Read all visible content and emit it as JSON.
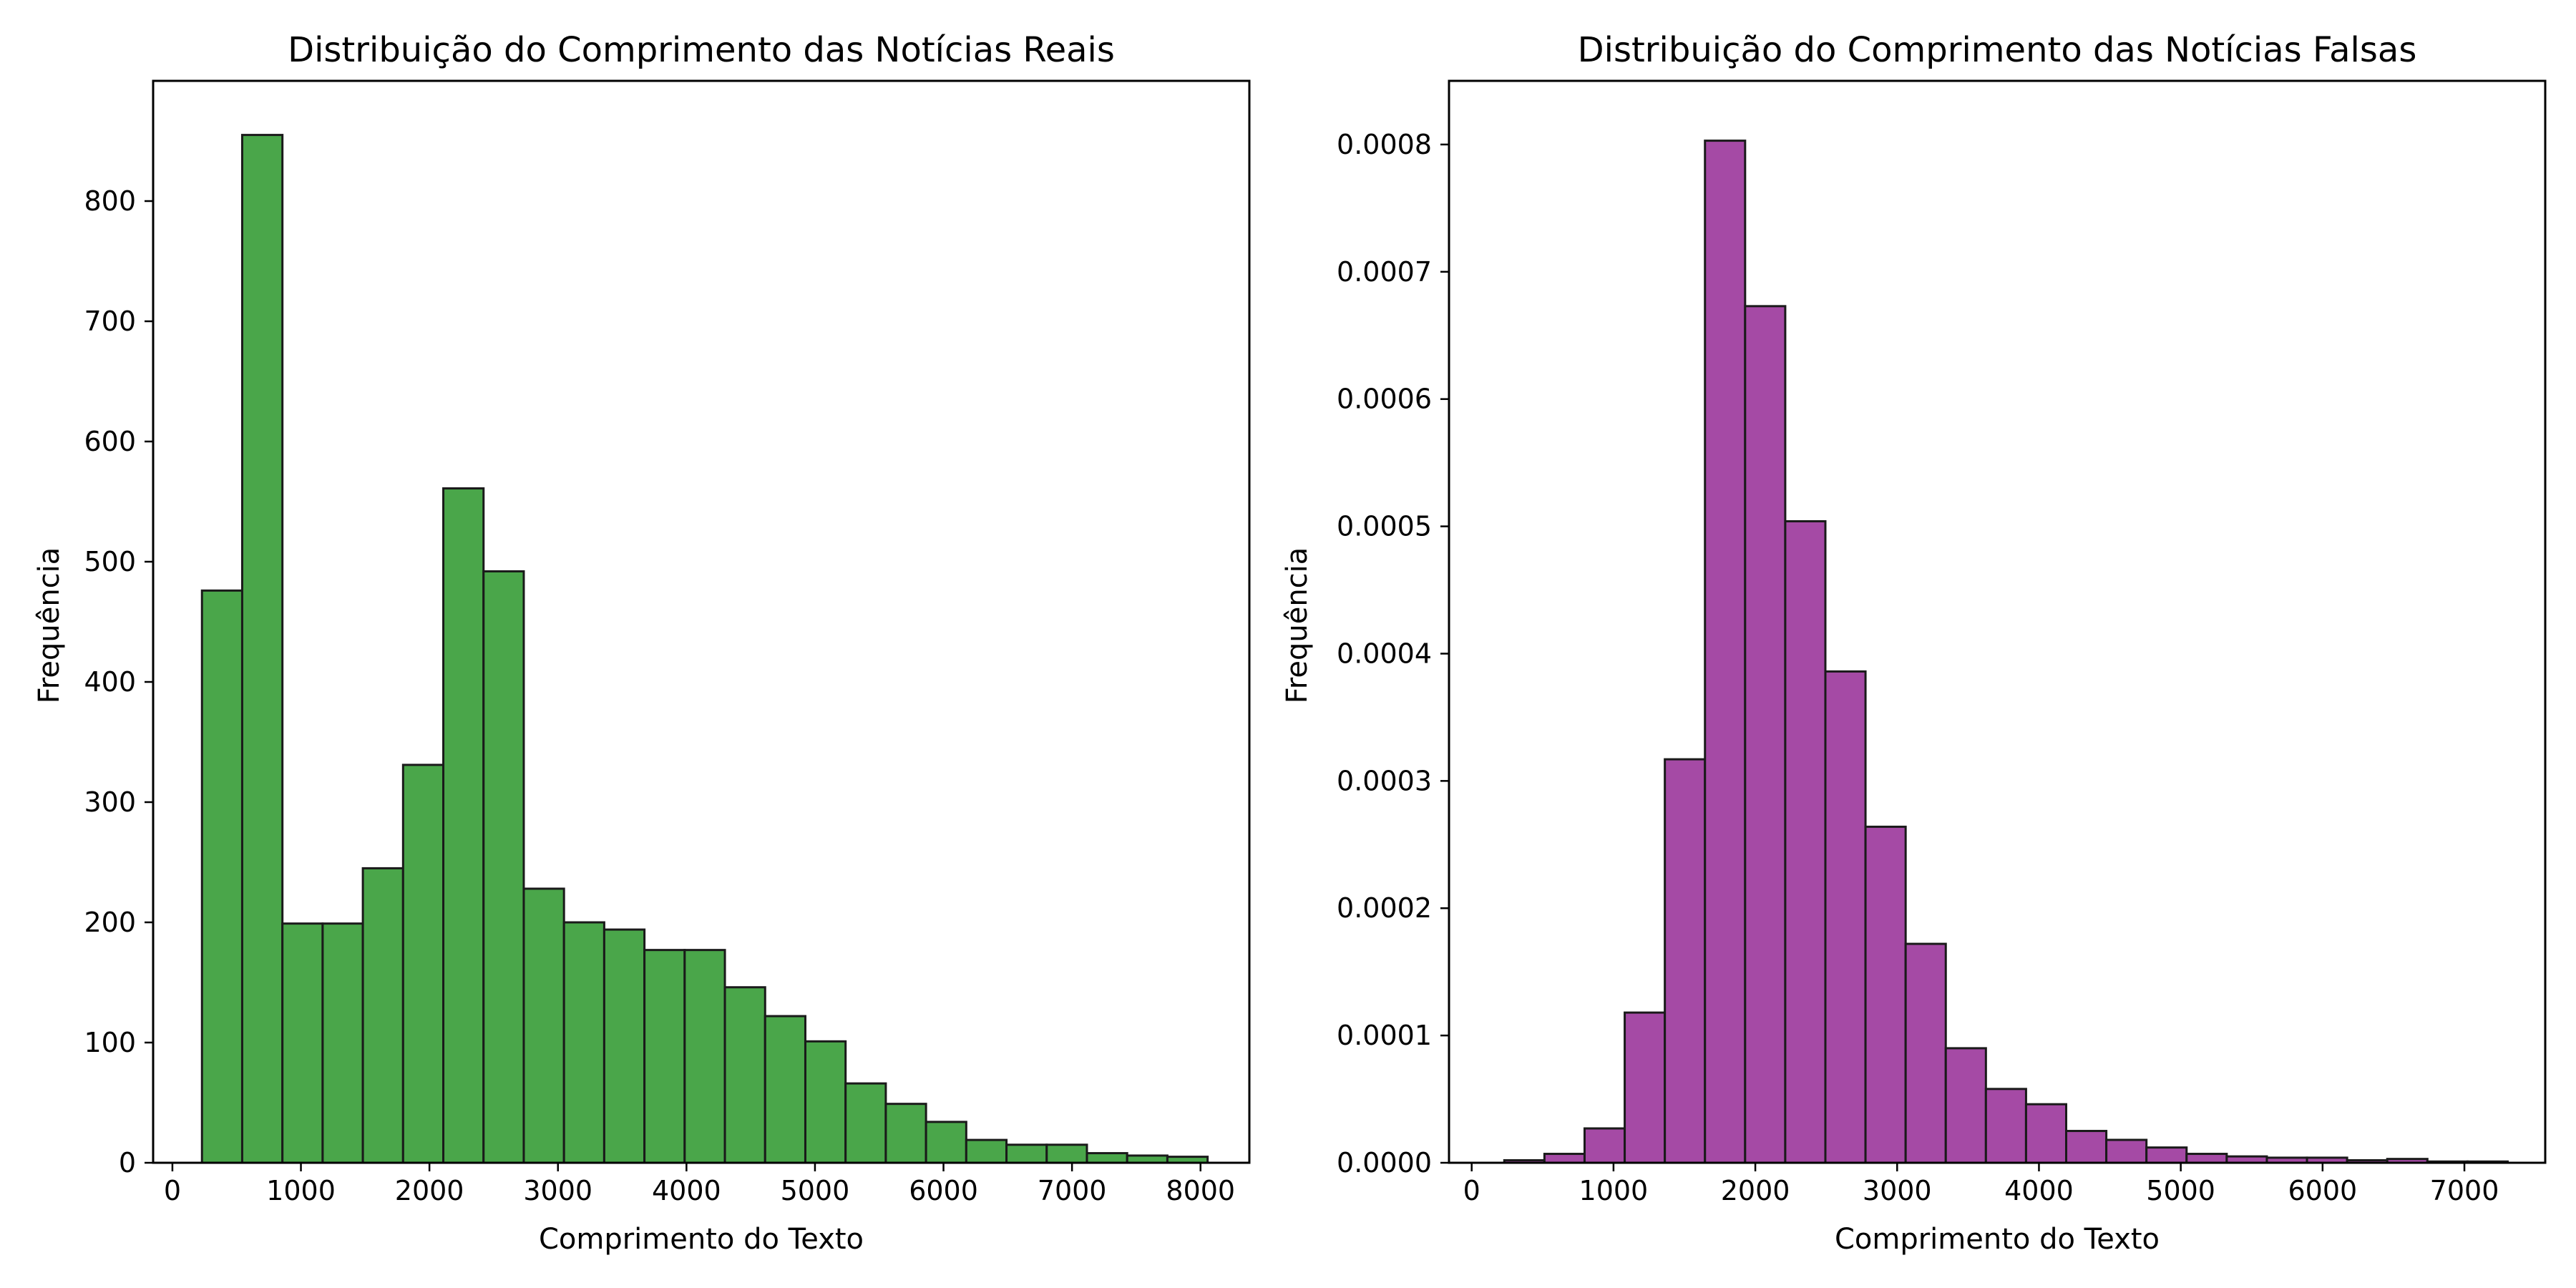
{
  "chart_data": [
    {
      "type": "bar",
      "title": "Distribuição do Comprimento das Notícias Reais",
      "xlabel": "Comprimento do Texto",
      "ylabel": "Frequência",
      "xlim": [
        -150,
        8380
      ],
      "ylim": [
        0,
        900
      ],
      "xticks": [
        0,
        1000,
        2000,
        3000,
        4000,
        5000,
        6000,
        7000,
        8000
      ],
      "yticks": [
        0,
        100,
        200,
        300,
        400,
        500,
        600,
        700,
        800
      ],
      "xtick_labels": [
        "0",
        "1000",
        "2000",
        "3000",
        "4000",
        "5000",
        "6000",
        "7000",
        "8000"
      ],
      "ytick_labels": [
        "0",
        "100",
        "200",
        "300",
        "400",
        "500",
        "600",
        "700",
        "800"
      ],
      "bar_color": "#4aa64a",
      "edge_color": "#1a1a1a",
      "grid": false,
      "bin_start": 230,
      "bin_width": 313,
      "values": [
        476,
        855,
        199,
        199,
        245,
        331,
        561,
        492,
        228,
        200,
        194,
        177,
        177,
        146,
        122,
        101,
        66,
        49,
        34,
        19,
        15,
        15,
        8,
        6,
        5
      ]
    },
    {
      "type": "bar",
      "title": "Distribuição do Comprimento das Notícias Falsas",
      "xlabel": "Comprimento do Texto",
      "ylabel": "Frequência",
      "xlim": [
        -160,
        7570
      ],
      "ylim": [
        0,
        0.00085
      ],
      "xticks": [
        0,
        1000,
        2000,
        3000,
        4000,
        5000,
        6000,
        7000
      ],
      "yticks": [
        0,
        0.0001,
        0.0002,
        0.0003,
        0.0004,
        0.0005,
        0.0006,
        0.0007,
        0.0008
      ],
      "xtick_labels": [
        "0",
        "1000",
        "2000",
        "3000",
        "4000",
        "5000",
        "6000",
        "7000"
      ],
      "ytick_labels": [
        "0.0000",
        "0.0001",
        "0.0002",
        "0.0003",
        "0.0004",
        "0.0005",
        "0.0006",
        "0.0007",
        "0.0008"
      ],
      "bar_color": "#a54aa5",
      "edge_color": "#1a1a1a",
      "grid": false,
      "bin_start": 230,
      "bin_width": 283,
      "values": [
        2e-06,
        7e-06,
        2.7e-05,
        0.000118,
        0.000317,
        0.000803,
        0.000673,
        0.000504,
        0.000386,
        0.000264,
        0.000172,
        9e-05,
        5.8e-05,
        4.6e-05,
        2.5e-05,
        1.8e-05,
        1.2e-05,
        7e-06,
        5e-06,
        4e-06,
        4e-06,
        2e-06,
        3e-06,
        1e-06,
        1e-06
      ]
    }
  ]
}
